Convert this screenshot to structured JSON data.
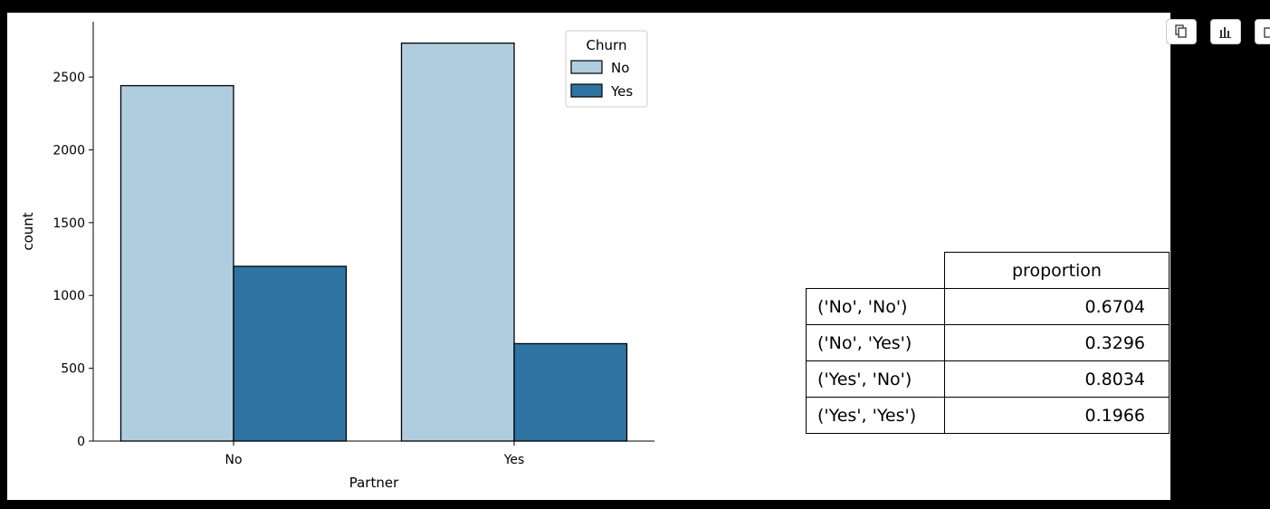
{
  "chart_data": {
    "type": "bar",
    "xlabel": "Partner",
    "ylabel": "count",
    "categories": [
      "No",
      "Yes"
    ],
    "series": [
      {
        "name": "No",
        "values": [
          2441,
          2733
        ]
      },
      {
        "name": "Yes",
        "values": [
          1200,
          669
        ]
      }
    ],
    "ylim": [
      0,
      2880
    ],
    "yticks": [
      0,
      500,
      1000,
      1500,
      2000,
      2500
    ],
    "legend": {
      "title": "Churn",
      "placement": "top-right"
    },
    "colors": {
      "No": "#b0cde0",
      "Yes": "#2f73a3"
    },
    "grid": false
  },
  "table": {
    "header": "proportion",
    "rows": [
      {
        "key": "('No', 'No')",
        "value": "0.6704"
      },
      {
        "key": "('No', 'Yes')",
        "value": "0.3296"
      },
      {
        "key": "('Yes', 'No')",
        "value": "0.8034"
      },
      {
        "key": "('Yes', 'Yes')",
        "value": "0.1966"
      }
    ]
  },
  "toolbar": {
    "icons": [
      "copy-icon",
      "bar-chart-icon",
      "export-icon"
    ]
  }
}
